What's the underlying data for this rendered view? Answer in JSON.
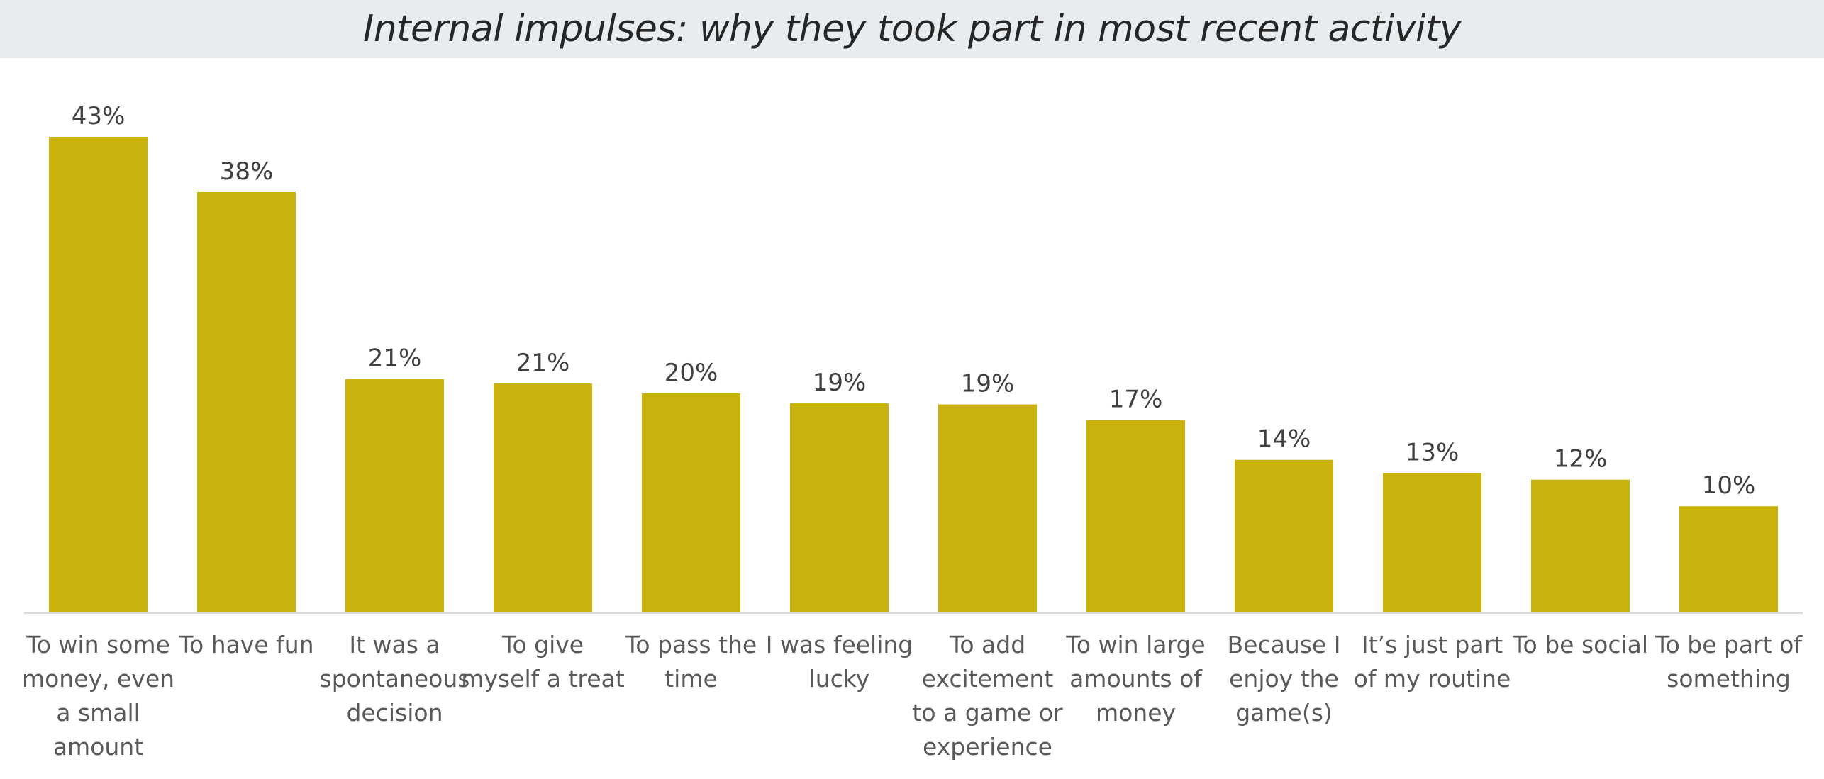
{
  "chart_data": {
    "type": "bar",
    "title": "Internal impulses: why they took part in most recent activity",
    "categories": [
      "To win some money, even a small amount",
      "To have fun",
      "It was a spontaneous decision",
      "To give myself a treat",
      "To pass the time",
      "I was feeling lucky",
      "To add excitement to a game or experience",
      "To win large amounts of money",
      "Because I enjoy the game(s)",
      "It’s just part of my routine",
      "To be social",
      "To be part of something"
    ],
    "category_lines": [
      [
        "To win some",
        "money, even",
        "a small",
        "amount"
      ],
      [
        "To have fun"
      ],
      [
        "It was a",
        "spontaneous",
        "decision"
      ],
      [
        "To give",
        "myself a treat"
      ],
      [
        "To pass the",
        "time"
      ],
      [
        "I was feeling",
        "lucky"
      ],
      [
        "To add",
        "excitement",
        "to a game or",
        "experience"
      ],
      [
        "To win large",
        "amounts of",
        "money"
      ],
      [
        "Because I",
        "enjoy the",
        "game(s)"
      ],
      [
        "It’s just part",
        "of my routine"
      ],
      [
        "To be social"
      ],
      [
        "To be part of",
        "something"
      ]
    ],
    "values": [
      43,
      38,
      21,
      21,
      20,
      19,
      19,
      17,
      14,
      13,
      12,
      10
    ],
    "plotted_values": [
      43,
      38,
      21.1,
      20.7,
      19.8,
      18.9,
      18.8,
      17.4,
      13.8,
      12.6,
      12.0,
      9.6
    ],
    "value_labels": [
      "43%",
      "38%",
      "21%",
      "21%",
      "20%",
      "19%",
      "19%",
      "17%",
      "14%",
      "13%",
      "12%",
      "10%"
    ],
    "ylim": [
      0,
      43
    ],
    "bar_color": "#c8b20b",
    "axis_color": "#d9d9d9",
    "grid": false,
    "legend": "none"
  }
}
